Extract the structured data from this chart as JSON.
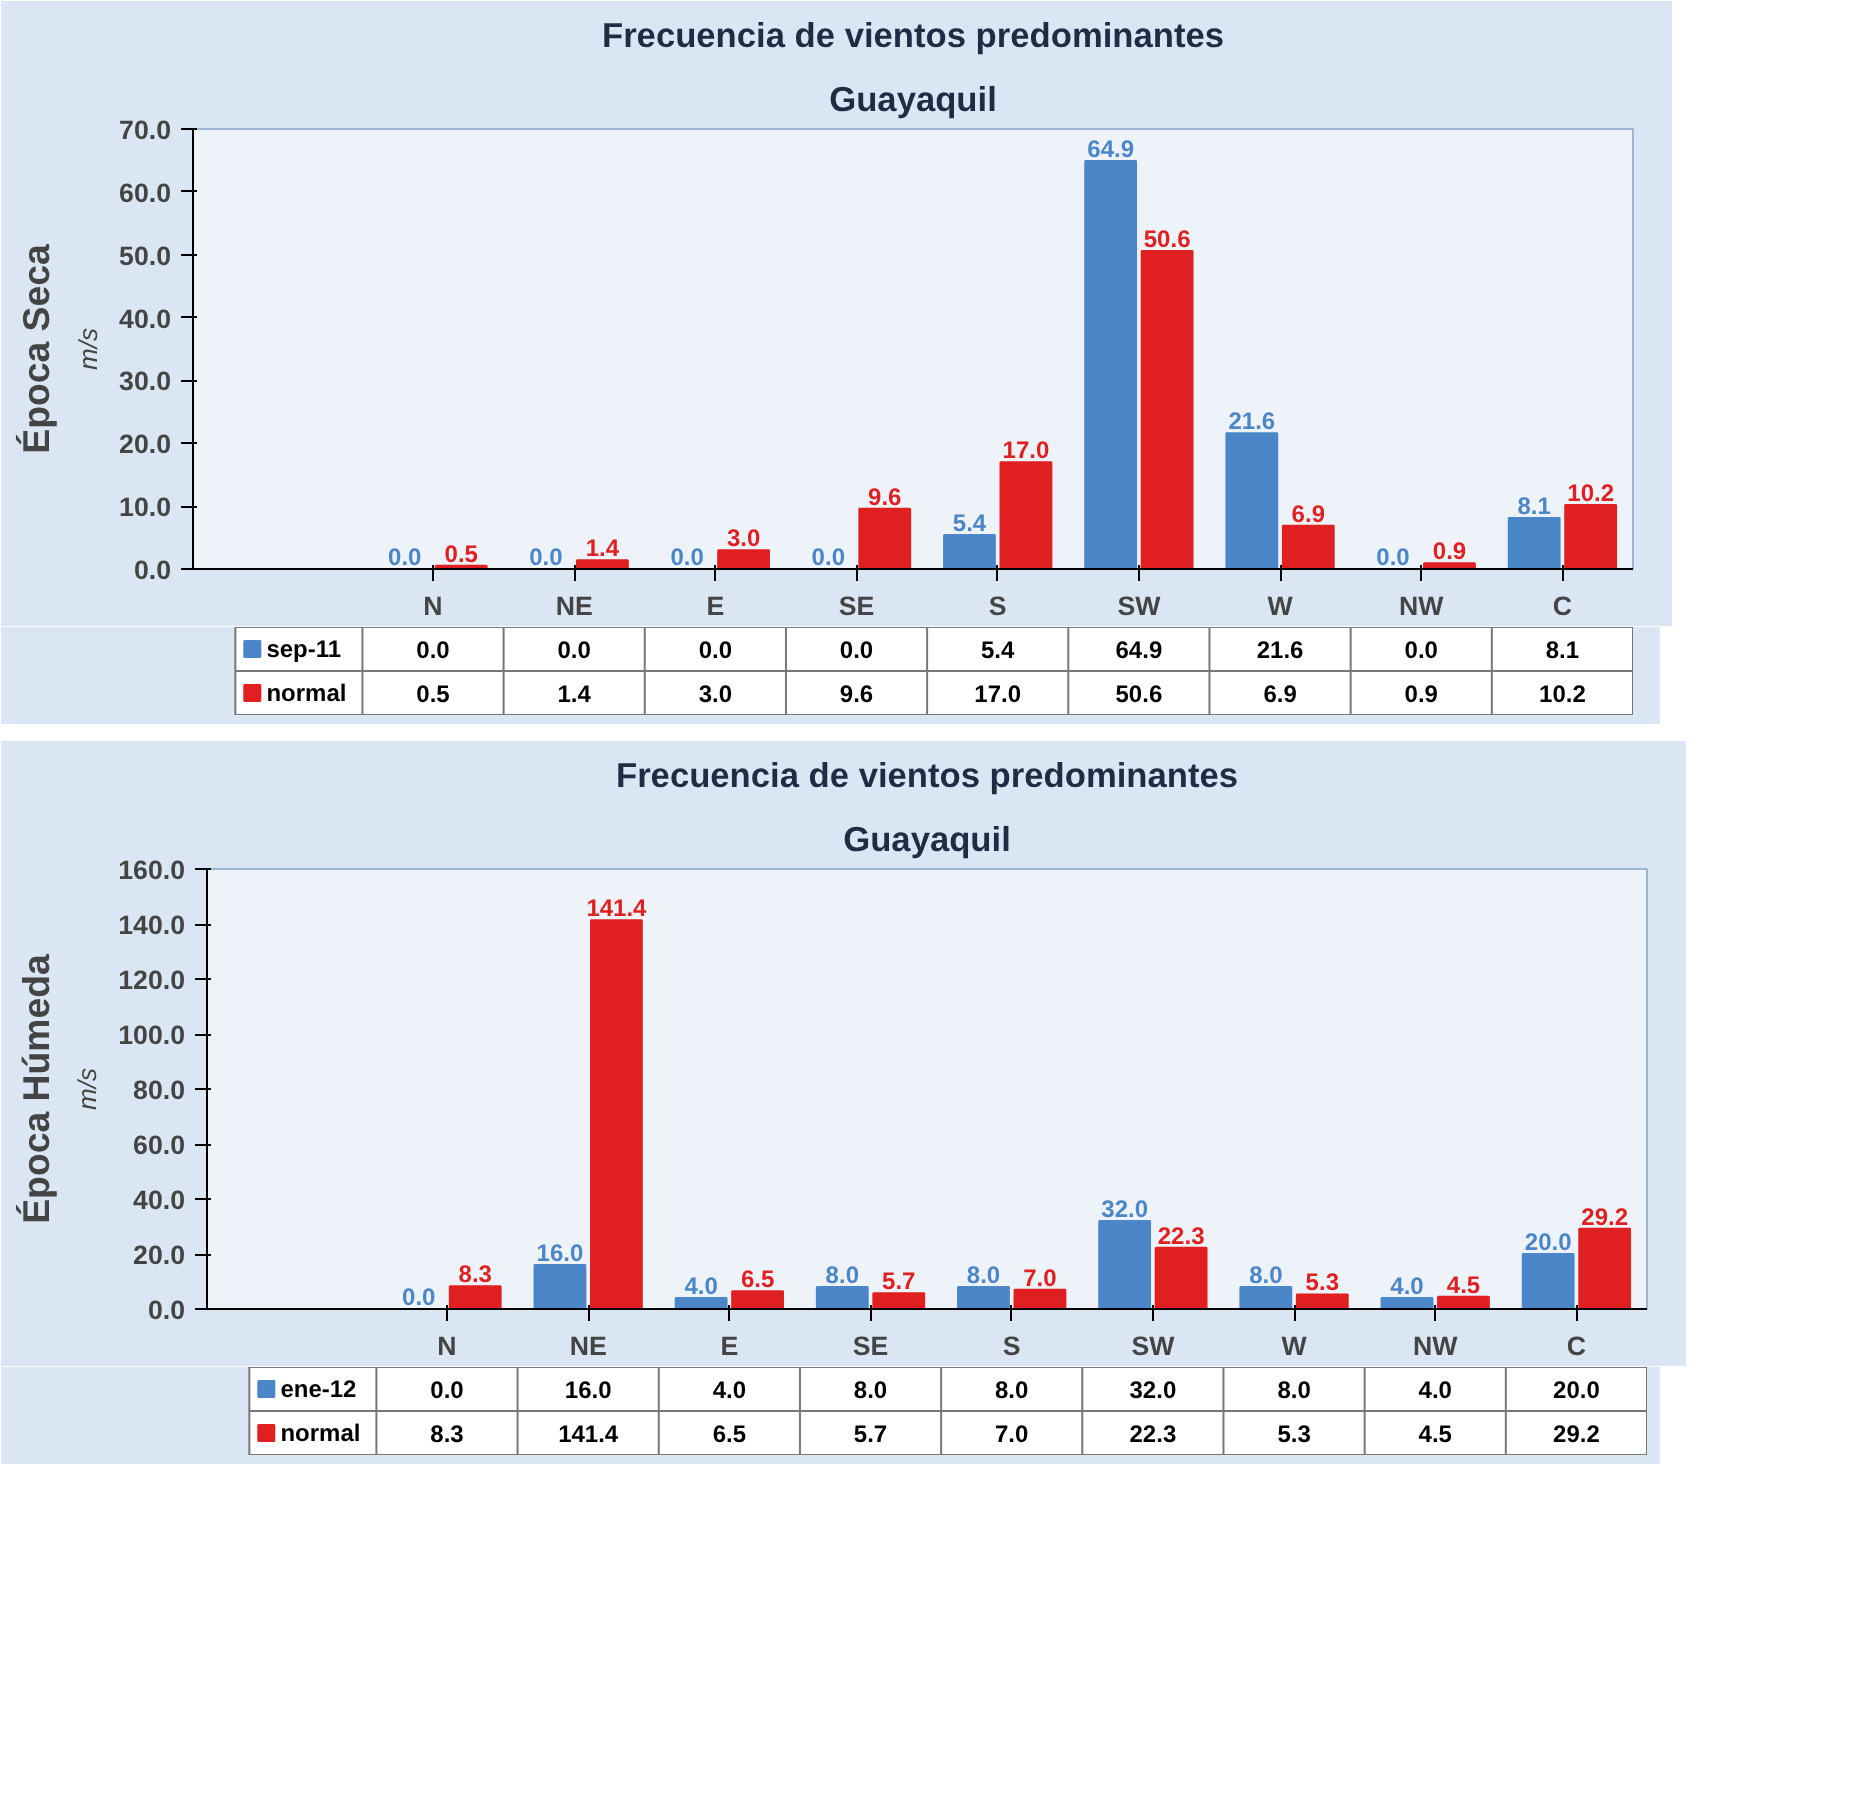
{
  "chart_data": [
    {
      "type": "bar",
      "title": "Frecuencia de vientos predominantes",
      "subtitle": "Guayaquil",
      "ylabel": "m/s",
      "annotations": [
        "Época Seca"
      ],
      "categories": [
        "N",
        "NE",
        "E",
        "SE",
        "S",
        "SW",
        "W",
        "NW",
        "C"
      ],
      "series": [
        {
          "name": "sep-11",
          "color": "#4a86c8",
          "values": [
            0.0,
            0.0,
            0.0,
            0.0,
            5.4,
            64.9,
            21.6,
            0.0,
            8.1
          ],
          "value_labels": [
            "0.0",
            "0.0",
            "0.0",
            "0.0",
            "5.4",
            "64.9",
            "21.6",
            "0.0",
            "8.1"
          ]
        },
        {
          "name": "normal",
          "color": "#e02020",
          "values": [
            0.5,
            1.4,
            3.0,
            9.6,
            17.0,
            50.6,
            6.9,
            0.9,
            10.2
          ],
          "value_labels": [
            "0.5",
            "1.4",
            "3.0",
            "9.6",
            "17.0",
            "50.6",
            "6.9",
            "0.9",
            "10.2"
          ]
        }
      ],
      "ylim": [
        0,
        70
      ],
      "yticks": [
        {
          "value": 0,
          "label": "0.0"
        },
        {
          "value": 10,
          "label": "10.0"
        },
        {
          "value": 20,
          "label": "20.0"
        },
        {
          "value": 30,
          "label": "30.0"
        },
        {
          "value": 40,
          "label": "40.0"
        },
        {
          "value": 50,
          "label": "50.0"
        },
        {
          "value": 60,
          "label": "60.0"
        },
        {
          "value": 70,
          "label": "70.0"
        }
      ],
      "grid": false,
      "legend": "bottom"
    },
    {
      "type": "bar",
      "title": "Frecuencia de vientos predominantes",
      "subtitle": "Guayaquil",
      "ylabel": "m/s",
      "annotations": [
        "Época Húmeda"
      ],
      "categories": [
        "N",
        "NE",
        "E",
        "SE",
        "S",
        "SW",
        "W",
        "NW",
        "C"
      ],
      "series": [
        {
          "name": "ene-12",
          "color": "#4a86c8",
          "values": [
            0.0,
            16.0,
            4.0,
            8.0,
            8.0,
            32.0,
            8.0,
            4.0,
            20.0
          ],
          "value_labels": [
            "0.0",
            "16.0",
            "4.0",
            "8.0",
            "8.0",
            "32.0",
            "8.0",
            "4.0",
            "20.0"
          ]
        },
        {
          "name": "normal",
          "color": "#e02020",
          "values": [
            8.3,
            141.4,
            6.5,
            5.7,
            7.0,
            22.3,
            5.3,
            4.5,
            29.2
          ],
          "value_labels": [
            "8.3",
            "141.4",
            "6.5",
            "5.7",
            "7.0",
            "22.3",
            "5.3",
            "4.5",
            "29.2"
          ]
        }
      ],
      "ylim": [
        0,
        160
      ],
      "yticks": [
        {
          "value": 0,
          "label": "0.0"
        },
        {
          "value": 20,
          "label": "20.0"
        },
        {
          "value": 40,
          "label": "40.0"
        },
        {
          "value": 60,
          "label": "60.0"
        },
        {
          "value": 80,
          "label": "80.0"
        },
        {
          "value": 100,
          "label": "100.0"
        },
        {
          "value": 120,
          "label": "120.0"
        },
        {
          "value": 140,
          "label": "140.0"
        },
        {
          "value": 160,
          "label": "160.0"
        }
      ],
      "grid": false,
      "legend": "bottom"
    }
  ]
}
